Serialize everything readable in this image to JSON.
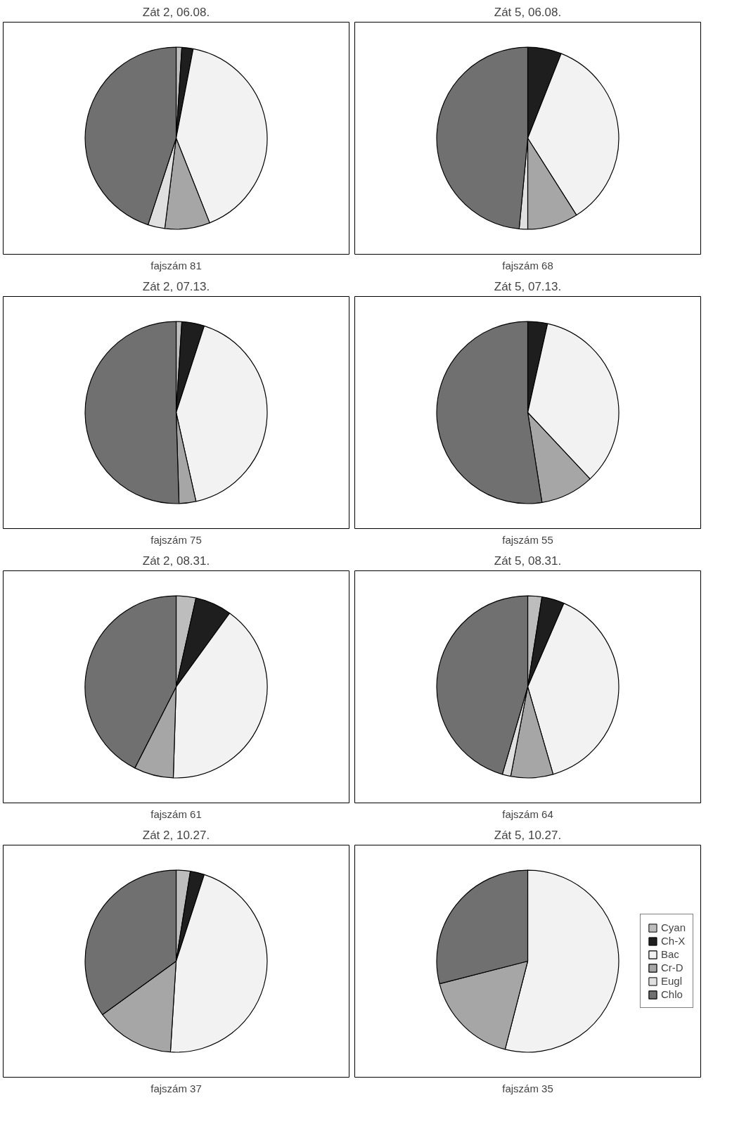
{
  "chart_data": [
    {
      "type": "pie",
      "title": "Zát 2, 06.08.",
      "annotations": [
        "fajszám 81"
      ],
      "categories": [
        null,
        null,
        null,
        null,
        null,
        null
      ],
      "values": [
        1,
        2,
        41,
        8,
        3,
        45
      ],
      "colors": [
        "#bdbdbd",
        "#1e1e1e",
        "#f2f2f2",
        "#a6a6a6",
        "#e0e0e0",
        "#707070"
      ]
    },
    {
      "type": "pie",
      "title": "Zát 5, 06.08.",
      "annotations": [
        "fajszám 68"
      ],
      "categories": [
        null,
        null,
        null,
        null,
        null,
        null
      ],
      "values": [
        null,
        6,
        35,
        9,
        1.5,
        48.5
      ],
      "colors": [
        "#bdbdbd",
        "#1e1e1e",
        "#f2f2f2",
        "#a6a6a6",
        "#e0e0e0",
        "#707070"
      ]
    },
    {
      "type": "pie",
      "title": "Zát 2, 07.13.",
      "annotations": [
        "fajszám 75"
      ],
      "categories": [
        null,
        null,
        null,
        null,
        null,
        null
      ],
      "values": [
        1,
        4,
        41.5,
        3,
        null,
        50.5
      ],
      "colors": [
        "#bdbdbd",
        "#1e1e1e",
        "#f2f2f2",
        "#a6a6a6",
        "#e0e0e0",
        "#707070"
      ]
    },
    {
      "type": "pie",
      "title": "Zát 5, 07.13.",
      "annotations": [
        "fajszám 55"
      ],
      "categories": [
        null,
        null,
        null,
        null,
        null,
        null
      ],
      "values": [
        null,
        3.5,
        34.5,
        9.5,
        null,
        52.5
      ],
      "colors": [
        "#bdbdbd",
        "#1e1e1e",
        "#f2f2f2",
        "#a6a6a6",
        "#e0e0e0",
        "#707070"
      ]
    },
    {
      "type": "pie",
      "title": "Zát 2, 08.31.",
      "annotations": [
        "fajszám 61"
      ],
      "categories": [
        null,
        null,
        null,
        null,
        null,
        null
      ],
      "values": [
        3.5,
        6.5,
        40.5,
        7,
        null,
        42.5
      ],
      "colors": [
        "#bdbdbd",
        "#1e1e1e",
        "#f2f2f2",
        "#a6a6a6",
        "#e0e0e0",
        "#707070"
      ]
    },
    {
      "type": "pie",
      "title": "Zát 5, 08.31.",
      "annotations": [
        "fajszám 64"
      ],
      "categories": [
        null,
        null,
        null,
        null,
        null,
        null
      ],
      "values": [
        2.5,
        4,
        39,
        7.5,
        1.5,
        45.5
      ],
      "colors": [
        "#bdbdbd",
        "#1e1e1e",
        "#f2f2f2",
        "#a6a6a6",
        "#e0e0e0",
        "#707070"
      ]
    },
    {
      "type": "pie",
      "title": "Zát 2, 10.27.",
      "annotations": [
        "fajszám 37"
      ],
      "categories": [
        null,
        null,
        null,
        null,
        null,
        null
      ],
      "values": [
        2.5,
        2.5,
        46,
        14,
        null,
        35
      ],
      "colors": [
        "#bdbdbd",
        "#1e1e1e",
        "#f2f2f2",
        "#a6a6a6",
        "#e0e0e0",
        "#707070"
      ]
    },
    {
      "type": "pie",
      "title": "Zát 5, 10.27.",
      "annotations": [
        "fajszám 35"
      ],
      "categories": [
        "Cyan",
        "Ch-X",
        "Bac",
        "Cr-D",
        "Eugl",
        "Chlo"
      ],
      "values": [
        null,
        null,
        54,
        17,
        null,
        29
      ],
      "colors": [
        "#bdbdbd",
        "#1e1e1e",
        "#f2f2f2",
        "#a6a6a6",
        "#e0e0e0",
        "#707070"
      ],
      "legend": "right"
    }
  ]
}
